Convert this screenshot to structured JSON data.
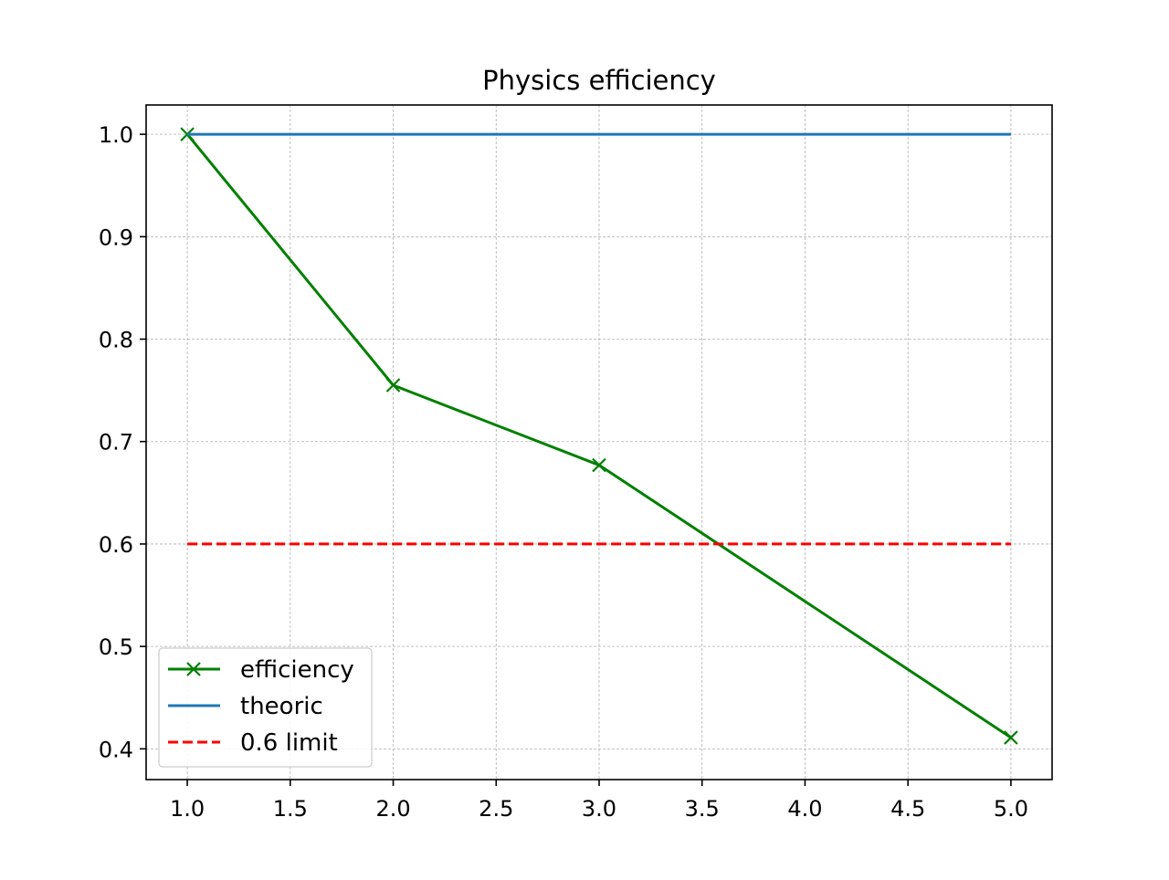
{
  "chart_data": {
    "type": "line",
    "title": "Physics efficiency",
    "xlabel": "",
    "ylabel": "",
    "xlim": [
      0.8,
      5.2
    ],
    "ylim": [
      0.37,
      1.0286
    ],
    "xticks": [
      1.0,
      1.5,
      2.0,
      2.5,
      3.0,
      3.5,
      4.0,
      4.5,
      5.0
    ],
    "xtick_labels": [
      "1.0",
      "1.5",
      "2.0",
      "2.5",
      "3.0",
      "3.5",
      "4.0",
      "4.5",
      "5.0"
    ],
    "yticks": [
      0.4,
      0.5,
      0.6,
      0.7,
      0.8,
      0.9,
      1.0
    ],
    "ytick_labels": [
      "0.4",
      "0.5",
      "0.6",
      "0.7",
      "0.8",
      "0.9",
      "1.0"
    ],
    "grid": true,
    "legend_position": "lower-left",
    "series": [
      {
        "name": "efficiency",
        "color": "#008000",
        "style": "solid",
        "marker": "x",
        "x": [
          1,
          2,
          3,
          5
        ],
        "y": [
          1.0,
          0.755,
          0.677,
          0.411
        ]
      },
      {
        "name": "theoric",
        "color": "#1f77b4",
        "style": "solid",
        "marker": "none",
        "x": [
          1,
          5
        ],
        "y": [
          1.0,
          1.0
        ]
      },
      {
        "name": "0.6 limit",
        "color": "#ff0000",
        "style": "dashed",
        "marker": "none",
        "x": [
          1,
          5
        ],
        "y": [
          0.6,
          0.6
        ]
      }
    ]
  }
}
